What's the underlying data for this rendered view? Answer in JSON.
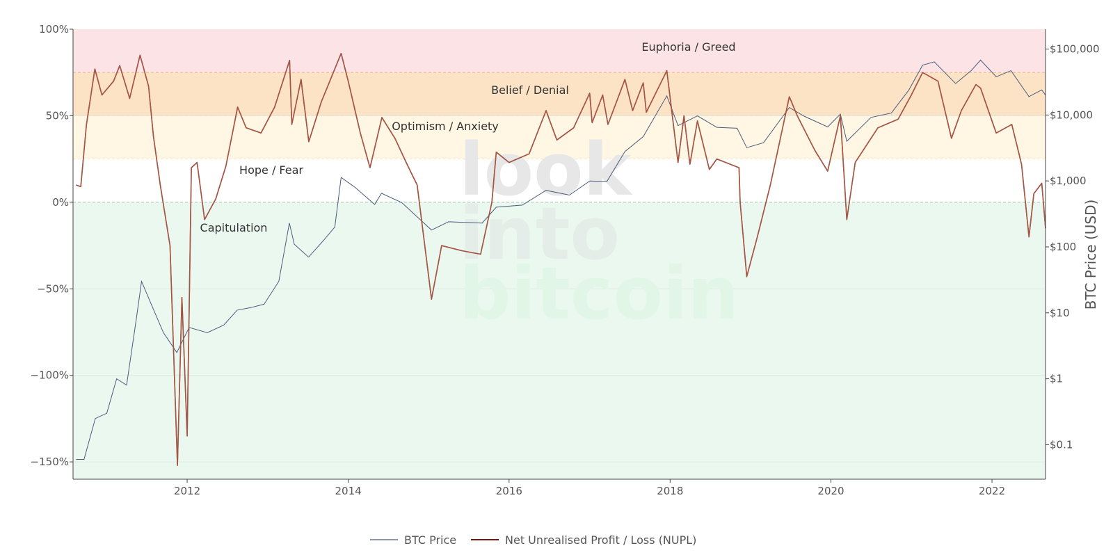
{
  "chart_data": {
    "type": "line",
    "title": "",
    "x_range": [
      "2010-08-01",
      "2022-09-01"
    ],
    "x_ticks": [
      "2012",
      "2014",
      "2016",
      "2018",
      "2020",
      "2022"
    ],
    "y_left": {
      "range": [
        -160,
        100
      ],
      "unit": "%",
      "ticks": [
        100,
        50,
        0,
        -50,
        -100,
        -150
      ],
      "tick_labels": [
        "100%",
        "50%",
        "0%",
        "−50%",
        "−100%",
        "−150%"
      ]
    },
    "y_right": {
      "title": "BTC Price (USD)",
      "scale": "log",
      "range": [
        0.03,
        200000
      ],
      "ticks": [
        100000,
        10000,
        1000,
        100,
        10,
        1,
        0.1
      ],
      "tick_labels": [
        "$100,000",
        "$10,000",
        "$1,000",
        "$100",
        "$10",
        "$1",
        "$0.1"
      ]
    },
    "zones": [
      {
        "name": "Euphoria / Greed",
        "from": 75,
        "to": 100,
        "color": "#fbe3e6"
      },
      {
        "name": "Belief / Denial",
        "from": 50,
        "to": 75,
        "color": "#fde3c6"
      },
      {
        "name": "Optimism / Anxiety",
        "from": 25,
        "to": 50,
        "color": "#fff6e3"
      },
      {
        "name": "Hope / Fear",
        "from": 0,
        "to": 25,
        "color": "#ffffff"
      },
      {
        "name": "Capitulation",
        "from": -160,
        "to": 0,
        "color": "#ebf8f0"
      }
    ],
    "series": [
      {
        "name": "BTC Price",
        "axis": "right",
        "color": "#4a5a7a",
        "points": [
          [
            "2010-08-15",
            0.06
          ],
          [
            "2010-09-20",
            0.06
          ],
          [
            "2010-11-10",
            0.25
          ],
          [
            "2011-01-01",
            0.3
          ],
          [
            "2011-02-15",
            1.0
          ],
          [
            "2011-04-01",
            0.8
          ],
          [
            "2011-05-15",
            8
          ],
          [
            "2011-06-08",
            30
          ],
          [
            "2011-07-20",
            14
          ],
          [
            "2011-09-15",
            5
          ],
          [
            "2011-11-15",
            2.5
          ],
          [
            "2012-01-10",
            6
          ],
          [
            "2012-04-01",
            5
          ],
          [
            "2012-06-15",
            6.5
          ],
          [
            "2012-08-15",
            11
          ],
          [
            "2012-10-15",
            12
          ],
          [
            "2012-12-15",
            13.5
          ],
          [
            "2013-02-20",
            30
          ],
          [
            "2013-04-09",
            230
          ],
          [
            "2013-05-01",
            110
          ],
          [
            "2013-07-05",
            70
          ],
          [
            "2013-09-15",
            130
          ],
          [
            "2013-11-01",
            200
          ],
          [
            "2013-11-30",
            1130
          ],
          [
            "2014-02-01",
            800
          ],
          [
            "2014-05-01",
            440
          ],
          [
            "2014-06-01",
            650
          ],
          [
            "2014-09-01",
            470
          ],
          [
            "2015-01-14",
            180
          ],
          [
            "2015-04-01",
            240
          ],
          [
            "2015-09-01",
            230
          ],
          [
            "2015-11-04",
            400
          ],
          [
            "2016-03-01",
            430
          ],
          [
            "2016-06-17",
            720
          ],
          [
            "2016-10-01",
            610
          ],
          [
            "2017-01-01",
            1000
          ],
          [
            "2017-03-20",
            980
          ],
          [
            "2017-06-10",
            2800
          ],
          [
            "2017-09-01",
            4700
          ],
          [
            "2017-12-17",
            19500
          ],
          [
            "2018-02-06",
            6900
          ],
          [
            "2018-05-05",
            9700
          ],
          [
            "2018-08-01",
            6500
          ],
          [
            "2018-11-01",
            6300
          ],
          [
            "2018-12-15",
            3200
          ],
          [
            "2019-03-01",
            3800
          ],
          [
            "2019-06-26",
            13000
          ],
          [
            "2019-09-01",
            9600
          ],
          [
            "2019-12-17",
            6600
          ],
          [
            "2020-02-13",
            10300
          ],
          [
            "2020-03-13",
            4000
          ],
          [
            "2020-07-01",
            9200
          ],
          [
            "2020-10-01",
            10700
          ],
          [
            "2020-12-20",
            24000
          ],
          [
            "2021-02-20",
            57000
          ],
          [
            "2021-04-14",
            64000
          ],
          [
            "2021-07-20",
            30000
          ],
          [
            "2021-10-01",
            48000
          ],
          [
            "2021-11-10",
            68000
          ],
          [
            "2022-01-20",
            38000
          ],
          [
            "2022-03-28",
            47000
          ],
          [
            "2022-06-18",
            19000
          ],
          [
            "2022-08-15",
            24000
          ],
          [
            "2022-09-01",
            20000
          ]
        ]
      },
      {
        "name": "Net Unrealised Profit / Loss (NUPL)",
        "axis": "left",
        "color": "#7b1410",
        "points": [
          [
            "2010-08-15",
            10
          ],
          [
            "2010-09-05",
            9
          ],
          [
            "2010-10-01",
            45
          ],
          [
            "2010-11-08",
            77
          ],
          [
            "2010-12-10",
            62
          ],
          [
            "2011-02-01",
            70
          ],
          [
            "2011-03-01",
            79
          ],
          [
            "2011-04-15",
            60
          ],
          [
            "2011-06-01",
            85
          ],
          [
            "2011-07-10",
            67
          ],
          [
            "2011-08-01",
            38
          ],
          [
            "2011-09-01",
            10
          ],
          [
            "2011-10-15",
            -25
          ],
          [
            "2011-11-18",
            -152
          ],
          [
            "2011-12-08",
            -55
          ],
          [
            "2012-01-01",
            -135
          ],
          [
            "2012-01-20",
            20
          ],
          [
            "2012-02-15",
            23
          ],
          [
            "2012-03-20",
            -10
          ],
          [
            "2012-05-10",
            2
          ],
          [
            "2012-06-25",
            21
          ],
          [
            "2012-08-17",
            55
          ],
          [
            "2012-09-25",
            43
          ],
          [
            "2012-12-01",
            40
          ],
          [
            "2013-02-01",
            55
          ],
          [
            "2013-04-10",
            82
          ],
          [
            "2013-04-20",
            45
          ],
          [
            "2013-06-01",
            71
          ],
          [
            "2013-07-06",
            35
          ],
          [
            "2013-09-01",
            58
          ],
          [
            "2013-11-30",
            86
          ],
          [
            "2014-01-01",
            70
          ],
          [
            "2014-02-25",
            40
          ],
          [
            "2014-04-10",
            20
          ],
          [
            "2014-06-03",
            49
          ],
          [
            "2014-08-01",
            37
          ],
          [
            "2014-09-25",
            22
          ],
          [
            "2014-11-10",
            10
          ],
          [
            "2015-01-14",
            -56
          ],
          [
            "2015-03-01",
            -25
          ],
          [
            "2015-06-01",
            -28
          ],
          [
            "2015-08-25",
            -30
          ],
          [
            "2015-10-15",
            0
          ],
          [
            "2015-11-04",
            29
          ],
          [
            "2016-01-01",
            23
          ],
          [
            "2016-04-01",
            28
          ],
          [
            "2016-06-17",
            53
          ],
          [
            "2016-08-05",
            36
          ],
          [
            "2016-10-20",
            43
          ],
          [
            "2017-01-01",
            63
          ],
          [
            "2017-01-12",
            46
          ],
          [
            "2017-03-01",
            62
          ],
          [
            "2017-03-25",
            45
          ],
          [
            "2017-06-10",
            71
          ],
          [
            "2017-07-15",
            53
          ],
          [
            "2017-09-01",
            69
          ],
          [
            "2017-09-15",
            52
          ],
          [
            "2017-12-17",
            76
          ],
          [
            "2018-02-06",
            23
          ],
          [
            "2018-03-05",
            50
          ],
          [
            "2018-04-01",
            22
          ],
          [
            "2018-05-05",
            47
          ],
          [
            "2018-06-28",
            19
          ],
          [
            "2018-08-01",
            25
          ],
          [
            "2018-11-10",
            20
          ],
          [
            "2018-11-15",
            0
          ],
          [
            "2018-12-15",
            -43
          ],
          [
            "2019-02-01",
            -20
          ],
          [
            "2019-04-01",
            10
          ],
          [
            "2019-06-26",
            61
          ],
          [
            "2019-08-01",
            50
          ],
          [
            "2019-10-20",
            30
          ],
          [
            "2019-12-17",
            18
          ],
          [
            "2020-02-13",
            50
          ],
          [
            "2020-03-13",
            -10
          ],
          [
            "2020-04-20",
            23
          ],
          [
            "2020-08-01",
            43
          ],
          [
            "2020-11-01",
            48
          ],
          [
            "2020-12-31",
            62
          ],
          [
            "2021-02-20",
            75
          ],
          [
            "2021-05-01",
            70
          ],
          [
            "2021-07-01",
            37
          ],
          [
            "2021-08-15",
            53
          ],
          [
            "2021-10-20",
            68
          ],
          [
            "2021-11-10",
            66
          ],
          [
            "2022-01-20",
            40
          ],
          [
            "2022-04-01",
            45
          ],
          [
            "2022-05-15",
            22
          ],
          [
            "2022-06-18",
            -20
          ],
          [
            "2022-07-10",
            5
          ],
          [
            "2022-08-15",
            11
          ],
          [
            "2022-09-01",
            -15
          ]
        ]
      }
    ],
    "legend_position": "bottom-center",
    "grid": true,
    "watermark": [
      "look",
      "into",
      "bitcoin"
    ]
  }
}
